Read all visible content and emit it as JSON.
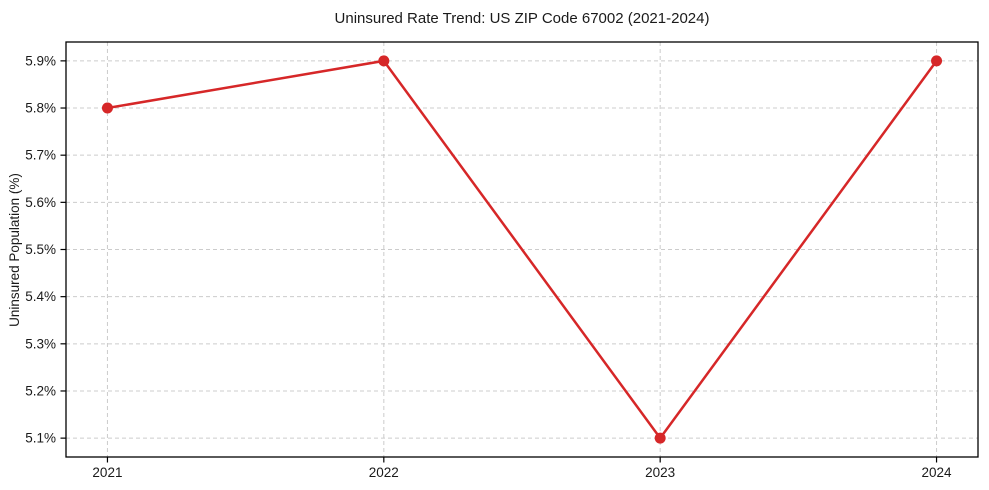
{
  "chart_data": {
    "type": "line",
    "title": "Uninsured Rate Trend: US ZIP Code 67002 (2021-2024)",
    "xlabel": "",
    "ylabel": "Uninsured Population (%)",
    "x": [
      2021,
      2022,
      2023,
      2024
    ],
    "x_tick_labels": [
      "2021",
      "2022",
      "2023",
      "2024"
    ],
    "series": [
      {
        "name": "uninsured-rate",
        "values": [
          5.8,
          5.9,
          5.1,
          5.9
        ],
        "color": "#d62728"
      }
    ],
    "y_ticks": [
      5.1,
      5.2,
      5.3,
      5.4,
      5.5,
      5.6,
      5.7,
      5.8,
      5.9
    ],
    "y_tick_labels": [
      "5.1%",
      "5.2%",
      "5.3%",
      "5.4%",
      "5.5%",
      "5.6%",
      "5.7%",
      "5.8%",
      "5.9%"
    ],
    "xlim": [
      2020.85,
      2024.15
    ],
    "ylim": [
      5.06,
      5.94
    ],
    "grid": true,
    "grid_style": "dashed",
    "legend": "none",
    "colors": {
      "line": "#d62728",
      "marker": "#d62728",
      "grid": "#cccccc",
      "spine": "#000000",
      "tick": "#000000",
      "text": "#1a1a1a",
      "background": "#ffffff"
    }
  }
}
